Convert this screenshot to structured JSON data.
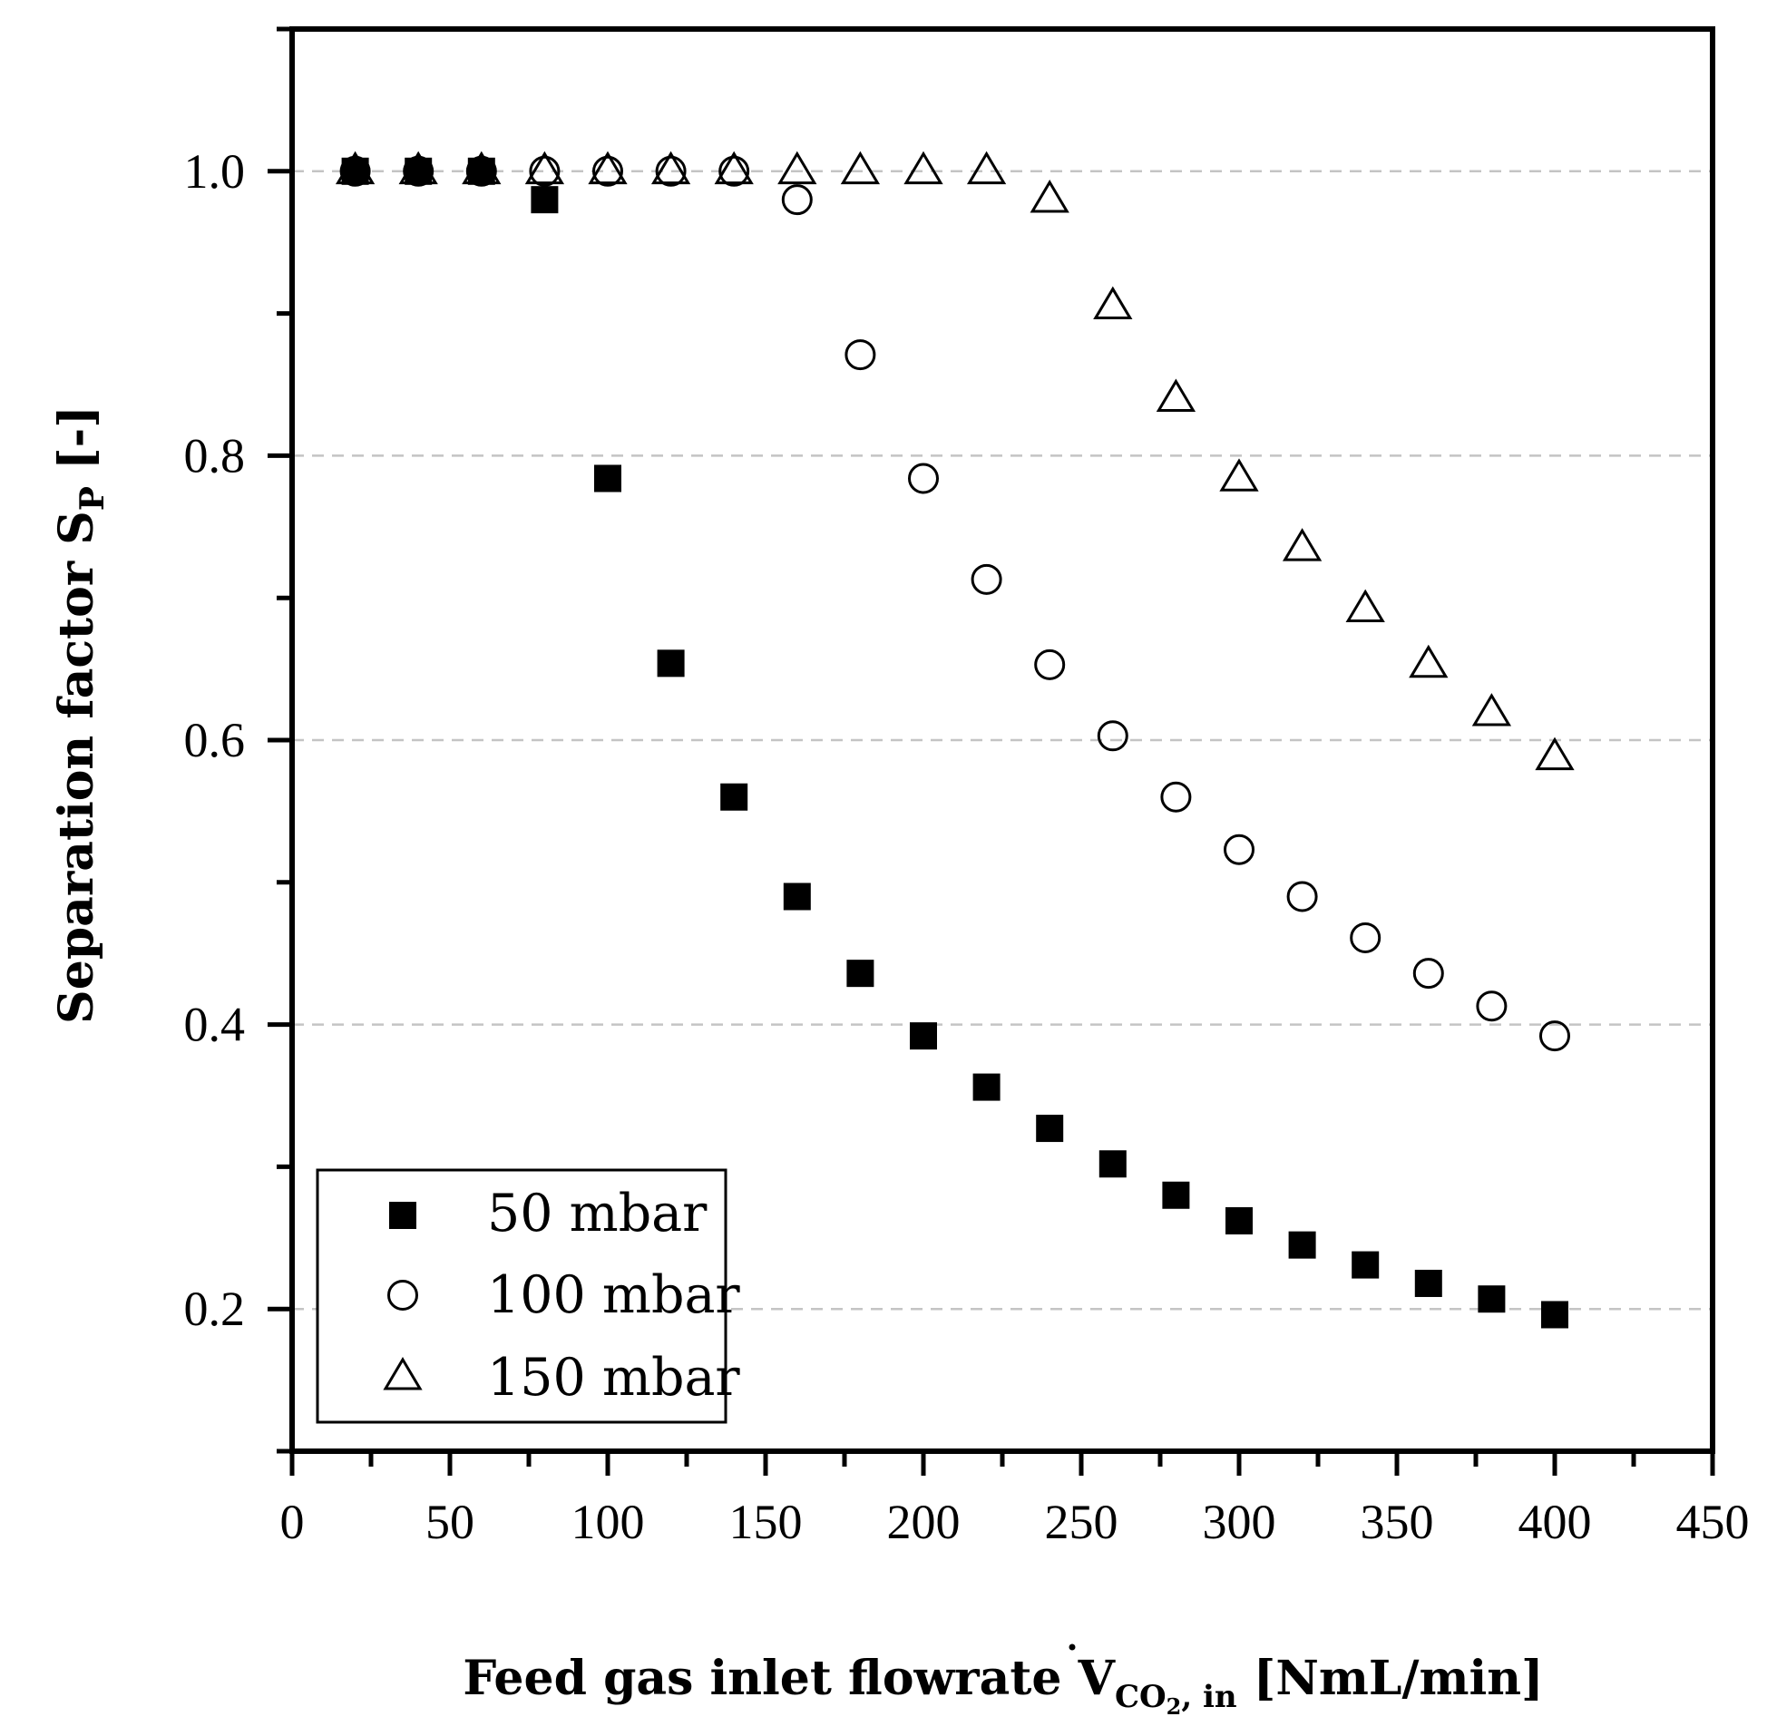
{
  "chart_data": {
    "type": "scatter",
    "title": "",
    "xlabel": {
      "main": "Feed gas inlet flowrate ",
      "symbol": "V",
      "subscript_main": "CO",
      "subscript_num": "2",
      "subscript_tail": ", in",
      "unit": " [NmL/min]"
    },
    "ylabel": {
      "main": "Separation factor S",
      "subscript": "P",
      "unit": " [-]"
    },
    "xlim": [
      0,
      450
    ],
    "ylim": [
      0.1,
      1.1
    ],
    "x_major_ticks": [
      0,
      50,
      100,
      150,
      200,
      250,
      300,
      350,
      400,
      450
    ],
    "x_tick_labels": [
      "0",
      "50",
      "100",
      "150",
      "200",
      "250",
      "300",
      "350",
      "400",
      "450"
    ],
    "x_minor_ticks": [
      25,
      75,
      125,
      175,
      225,
      275,
      325,
      375,
      425
    ],
    "y_major_ticks": [
      0.2,
      0.4,
      0.6,
      0.8,
      1.0
    ],
    "y_tick_labels": [
      "0.2",
      "0.4",
      "0.6",
      "0.8",
      "1.0"
    ],
    "y_minor_ticks": [
      0.1,
      0.3,
      0.5,
      0.7,
      0.9,
      1.1
    ],
    "grid": "dashed horizontal at major y ticks",
    "legend_position": "bottom-left",
    "series": [
      {
        "name": "50 mbar",
        "marker": "filled-square",
        "x": [
          20,
          40,
          60,
          80,
          100,
          120,
          140,
          160,
          180,
          200,
          220,
          240,
          260,
          280,
          300,
          320,
          340,
          360,
          380,
          400
        ],
        "y": [
          1.0,
          1.0,
          1.0,
          0.98,
          0.784,
          0.654,
          0.56,
          0.49,
          0.436,
          0.392,
          0.356,
          0.327,
          0.302,
          0.28,
          0.262,
          0.245,
          0.231,
          0.218,
          0.207,
          0.196
        ]
      },
      {
        "name": "100 mbar",
        "marker": "open-circle",
        "x": [
          20,
          40,
          60,
          80,
          100,
          120,
          140,
          160,
          180,
          200,
          220,
          240,
          260,
          280,
          300,
          320,
          340,
          360,
          380,
          400
        ],
        "y": [
          1.0,
          1.0,
          1.0,
          1.0,
          1.0,
          1.0,
          1.0,
          0.98,
          0.871,
          0.784,
          0.713,
          0.653,
          0.603,
          0.56,
          0.523,
          0.49,
          0.461,
          0.436,
          0.413,
          0.392
        ]
      },
      {
        "name": "150 mbar",
        "marker": "open-triangle",
        "x": [
          20,
          40,
          60,
          80,
          100,
          120,
          140,
          160,
          180,
          200,
          220,
          240,
          260,
          280,
          300,
          320,
          340,
          360,
          380,
          400
        ],
        "y": [
          1.0,
          1.0,
          1.0,
          1.0,
          1.0,
          1.0,
          1.0,
          1.0,
          1.0,
          1.0,
          1.0,
          0.98,
          0.905,
          0.84,
          0.784,
          0.735,
          0.692,
          0.653,
          0.619,
          0.588
        ]
      }
    ]
  }
}
